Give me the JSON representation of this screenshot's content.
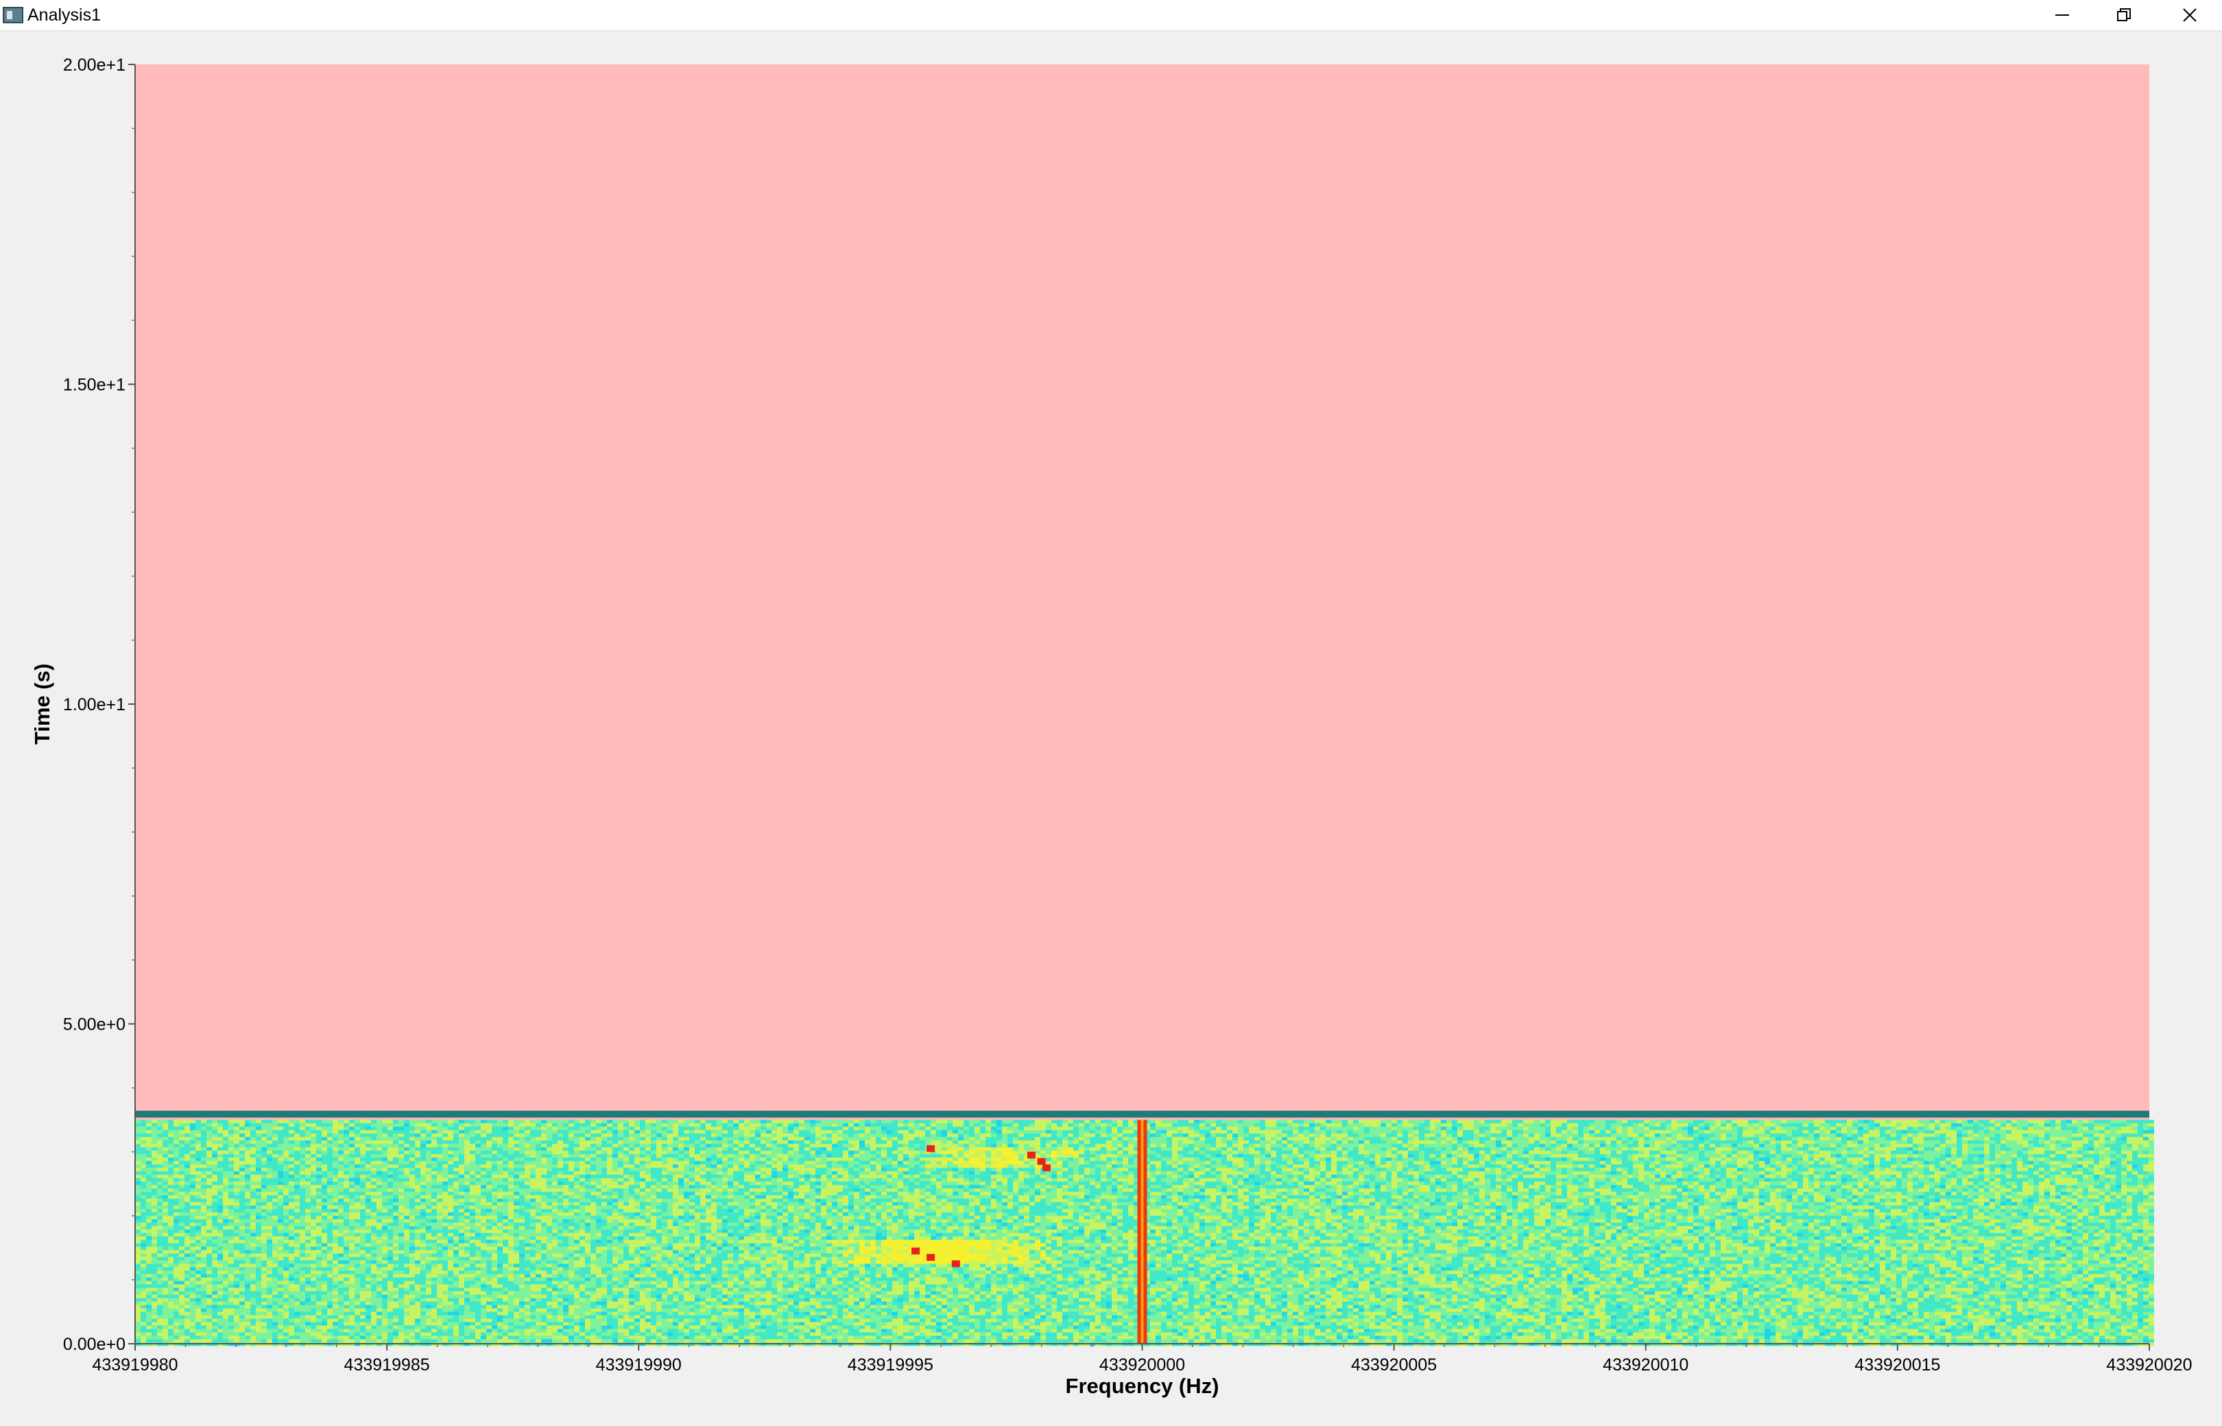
{
  "window": {
    "title": "Analysis1",
    "minimize_icon": "minimize-icon",
    "restore_icon": "restore-icon",
    "close_icon": "close-icon"
  },
  "chart_data": {
    "type": "heatmap",
    "title": "",
    "xlabel": "Frequency (Hz)",
    "ylabel": "Time (s)",
    "xlim": [
      433919980,
      433920020
    ],
    "ylim": [
      0,
      20
    ],
    "x_ticks": [
      "433919980",
      "433919985",
      "433919990",
      "433919995",
      "433920000",
      "433920005",
      "433920010",
      "433920015",
      "433920020"
    ],
    "x_tick_values": [
      433919980,
      433919985,
      433919990,
      433919995,
      433920000,
      433920005,
      433920010,
      433920015,
      433920020
    ],
    "y_ticks": [
      "0.00e+0",
      "5.00e+0",
      "1.00e+1",
      "1.50e+1",
      "2.00e+1"
    ],
    "y_tick_values": [
      0,
      5,
      10,
      15,
      20
    ],
    "empty_region_color": "#ffbaba",
    "current_time_marker": {
      "time": 3.6,
      "color": "#1f7a78"
    },
    "data_time_range": [
      0,
      3.5
    ],
    "colormap": [
      "#1fd5e6",
      "#3fe8c8",
      "#7cf29c",
      "#c8f460",
      "#f5f12f",
      "#ff9d1e",
      "#e8231c"
    ],
    "carrier": {
      "frequency": 433920000,
      "width_hz": 0.3,
      "color": "#e83a10",
      "core_color": "#ff9a14"
    },
    "bursts": [
      {
        "f_start": 433919993.5,
        "f_end": 433919998.5,
        "t_start": 1.25,
        "t_end": 1.65,
        "intensity": 0.6
      },
      {
        "f_start": 433919995.5,
        "f_end": 433919999.0,
        "t_start": 2.75,
        "t_end": 3.05,
        "intensity": 0.35
      }
    ],
    "hotspots": [
      {
        "f": 433919995.8,
        "t": 3.05
      },
      {
        "f": 433919997.8,
        "t": 2.95
      },
      {
        "f": 433919998.0,
        "t": 2.85
      },
      {
        "f": 433919998.1,
        "t": 2.75
      },
      {
        "f": 433919995.5,
        "t": 1.45
      },
      {
        "f": 433919995.8,
        "t": 1.35
      },
      {
        "f": 433919996.3,
        "t": 1.25
      }
    ],
    "grid": false,
    "legend": "none"
  }
}
